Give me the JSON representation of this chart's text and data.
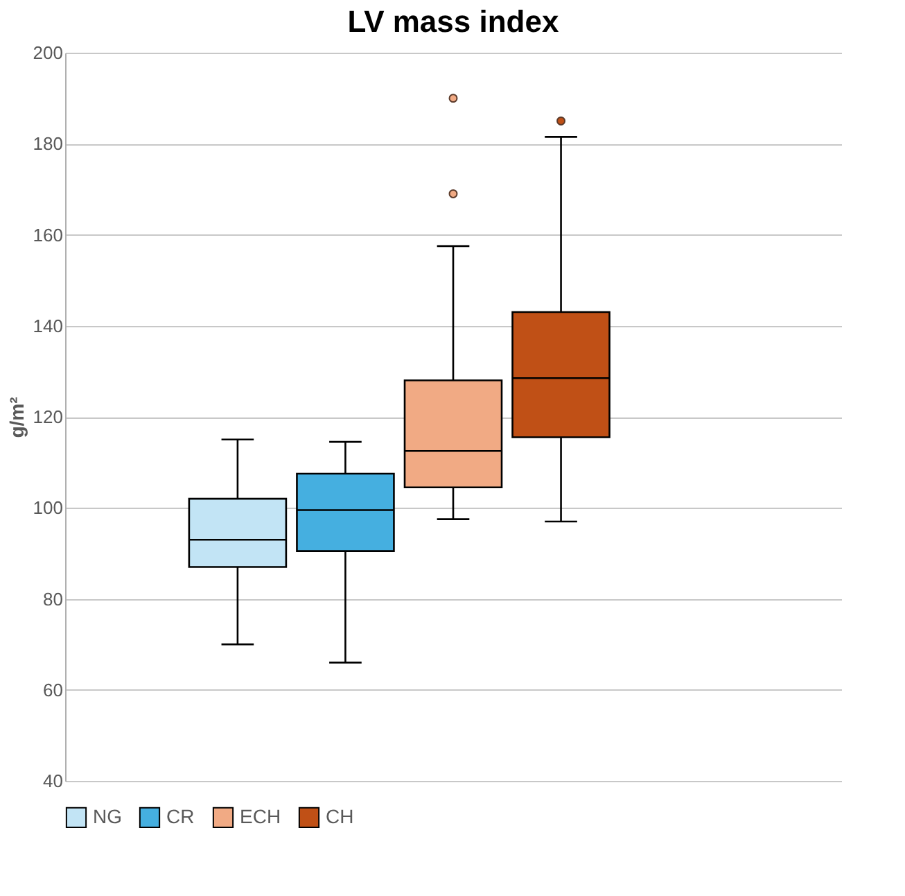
{
  "chart_data": {
    "type": "box",
    "title": "LV mass index",
    "ylabel": "g/m²",
    "categories": [
      null
    ],
    "series": [
      {
        "name": "NG",
        "color": "#c2e4f5",
        "boxes": [
          {
            "low": 70,
            "q1": 87,
            "median": 93,
            "q3": 102,
            "high": 115
          }
        ]
      },
      {
        "name": "CR",
        "color": "#45afe0",
        "boxes": [
          {
            "low": 66,
            "q1": 90.5,
            "median": 99.5,
            "q3": 107.5,
            "high": 114.5
          }
        ]
      },
      {
        "name": "ECH",
        "color": "#f1aa84",
        "boxes": [
          {
            "low": 97.5,
            "q1": 104.5,
            "median": 112.5,
            "q3": 128,
            "high": 157.5,
            "outliers": [
              169,
              190
            ]
          }
        ]
      },
      {
        "name": "CH",
        "color": "#c05016",
        "boxes": [
          {
            "low": 97,
            "q1": 115.5,
            "median": 128.5,
            "q3": 143,
            "high": 181.5,
            "outliers": [
              185
            ]
          }
        ]
      }
    ],
    "ylim": [
      40,
      200
    ],
    "yticks": [
      40,
      60,
      80,
      100,
      120,
      140,
      160,
      180,
      200
    ],
    "grid": "y",
    "legend": "bottom"
  }
}
